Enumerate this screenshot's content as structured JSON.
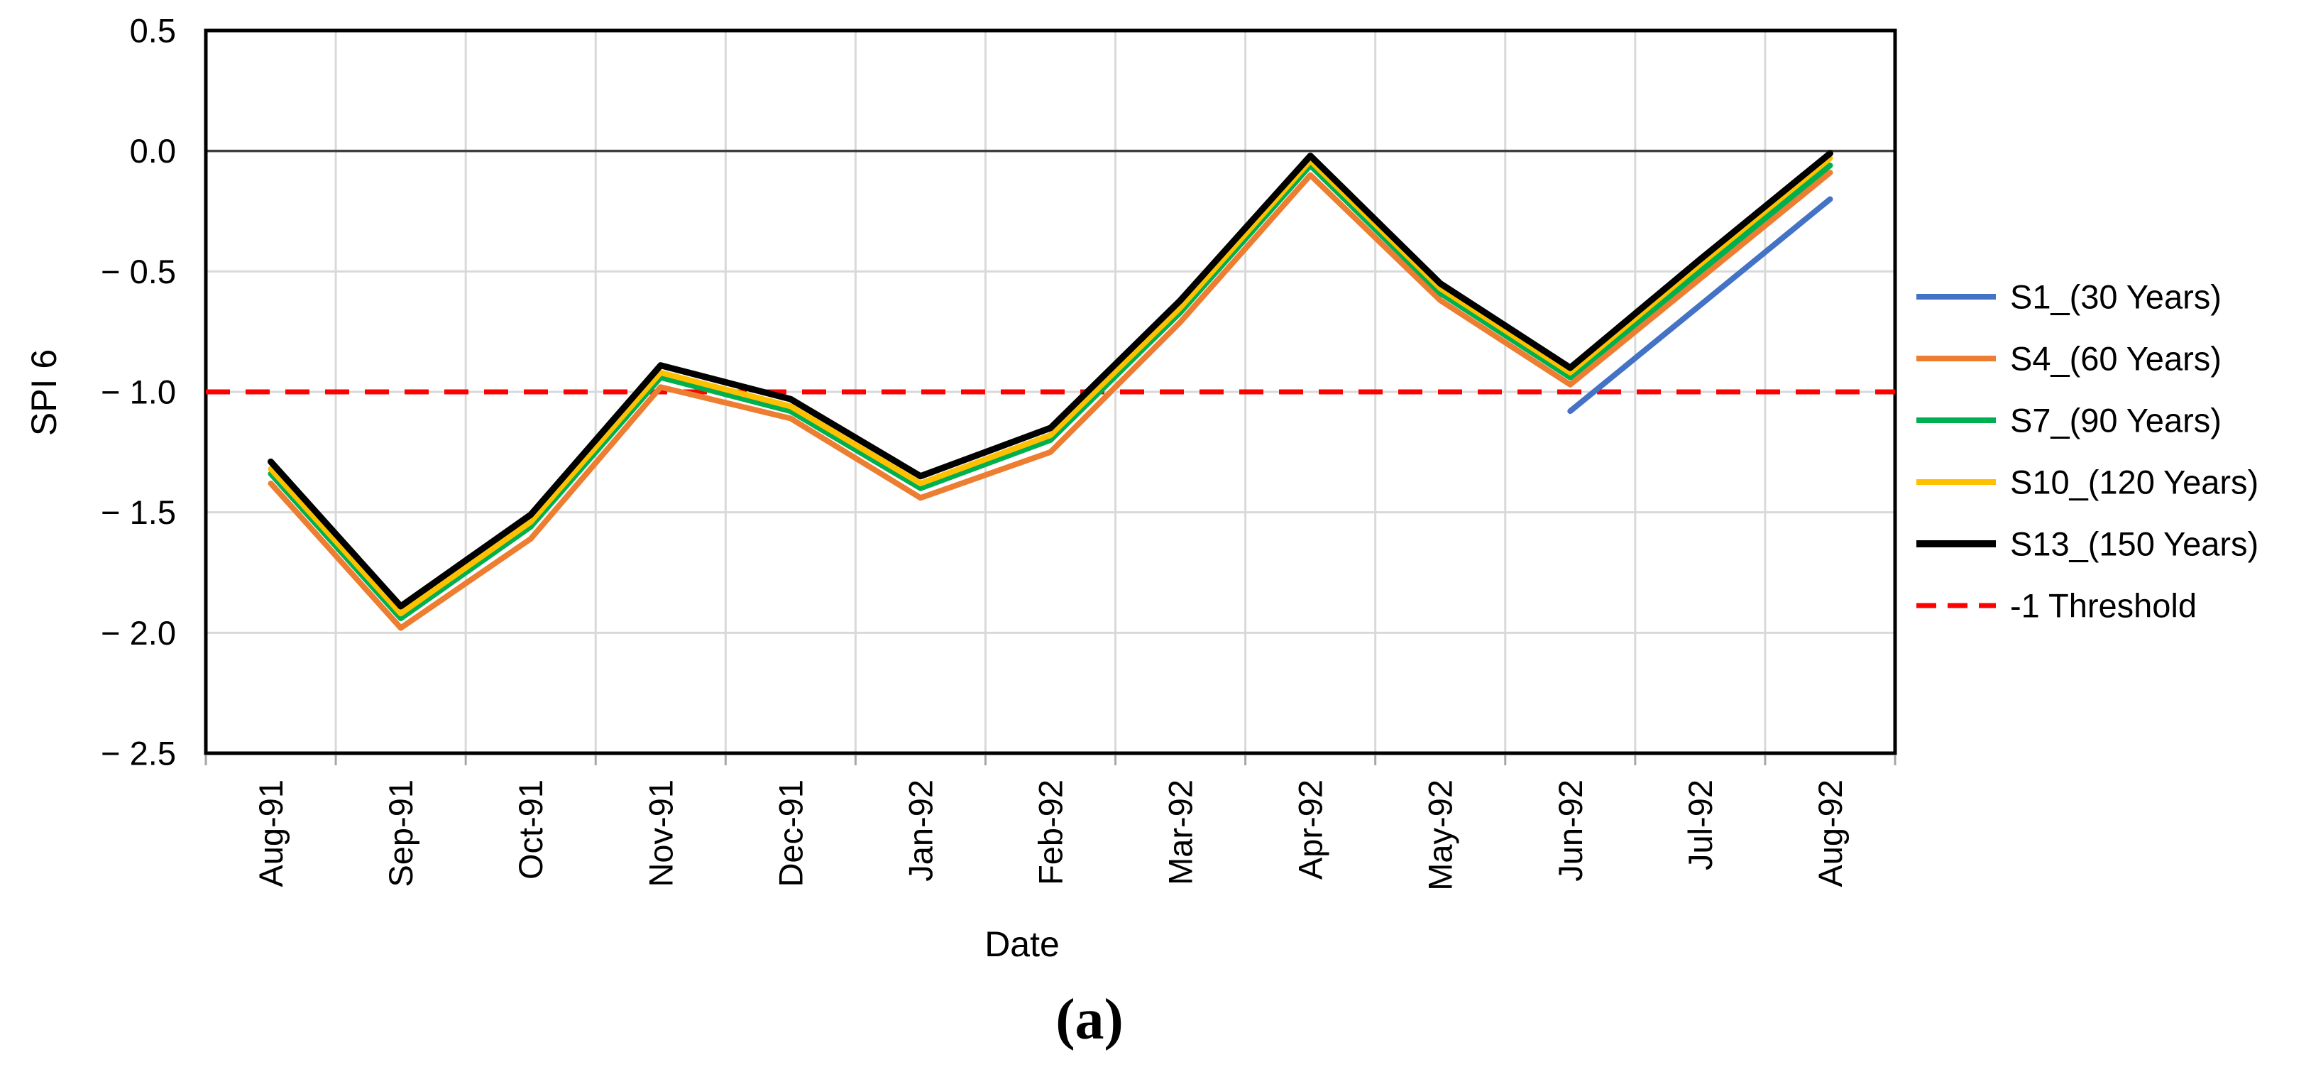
{
  "figure": {
    "caption": "(a)",
    "background": "#ffffff"
  },
  "chart_data": {
    "type": "line",
    "title": "",
    "xlabel": "Date",
    "ylabel": "SPI 6",
    "x_categories": [
      "Aug-91",
      "Sep-91",
      "Oct-91",
      "Nov-91",
      "Dec-91",
      "Jan-92",
      "Feb-92",
      "Mar-92",
      "Apr-92",
      "May-92",
      "Jun-92",
      "Jul-92",
      "Aug-92"
    ],
    "ylim": [
      -2.5,
      0.5
    ],
    "ytick_values": [
      0.5,
      0.0,
      -0.5,
      -1.0,
      -1.5,
      -2.0,
      -2.5
    ],
    "ytick_labels": [
      "0.5",
      "0.0",
      "− 0.5",
      "− 1.0",
      "− 1.5",
      "− 2.0",
      "− 2.5"
    ],
    "grid": true,
    "legend_position": "right",
    "axis_color": "#000000",
    "gridline_color": "#d9d9d9",
    "zero_line_color": "#3f3f3f",
    "series": [
      {
        "name": "S1_(30 Years)",
        "color": "#4472c4",
        "dashed": false,
        "values": [
          null,
          null,
          null,
          null,
          null,
          null,
          null,
          null,
          null,
          null,
          -1.08,
          -0.64,
          -0.2
        ]
      },
      {
        "name": "S4_(60 Years)",
        "color": "#ed7d31",
        "dashed": false,
        "values": [
          -1.38,
          -1.98,
          -1.61,
          -0.98,
          -1.11,
          -1.44,
          -1.25,
          -0.71,
          -0.1,
          -0.62,
          -0.97,
          -0.53,
          -0.09
        ]
      },
      {
        "name": "S7_(90 Years)",
        "color": "#00b050",
        "dashed": false,
        "values": [
          -1.34,
          -1.94,
          -1.56,
          -0.94,
          -1.08,
          -1.4,
          -1.2,
          -0.67,
          -0.06,
          -0.59,
          -0.94,
          -0.5,
          -0.06
        ]
      },
      {
        "name": "S10_(120 Years)",
        "color": "#ffc000",
        "dashed": false,
        "values": [
          -1.32,
          -1.92,
          -1.54,
          -0.92,
          -1.06,
          -1.38,
          -1.18,
          -0.65,
          -0.04,
          -0.57,
          -0.92,
          -0.47,
          -0.03
        ]
      },
      {
        "name": "S13_(150 Years)",
        "color": "#000000",
        "dashed": false,
        "values": [
          -1.29,
          -1.89,
          -1.51,
          -0.89,
          -1.03,
          -1.35,
          -1.15,
          -0.62,
          -0.02,
          -0.55,
          -0.9,
          -0.45,
          -0.01
        ]
      },
      {
        "name": "-1 Threshold",
        "color": "#ff0000",
        "dashed": true,
        "threshold_value": -1.0
      }
    ]
  }
}
